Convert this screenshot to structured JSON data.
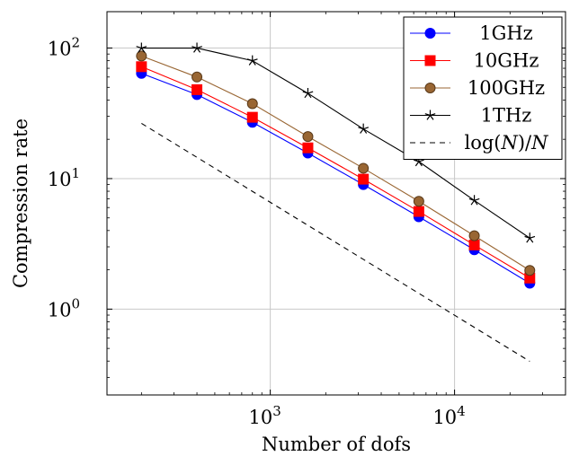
{
  "chart_data": {
    "type": "line",
    "xscale": "log",
    "yscale": "log",
    "xlabel": "Number of dofs",
    "ylabel": "Compression rate",
    "xlim": [
      130,
      40000
    ],
    "ylim": [
      0.22,
      190
    ],
    "grid": true,
    "legend_position": "top-right",
    "xticks": [
      {
        "value": 1000,
        "base": "10",
        "exp": "3"
      },
      {
        "value": 10000,
        "base": "10",
        "exp": "4"
      }
    ],
    "yticks": [
      {
        "value": 1,
        "base": "10",
        "exp": "0"
      },
      {
        "value": 10,
        "base": "10",
        "exp": "1"
      },
      {
        "value": 100,
        "base": "10",
        "exp": "2"
      }
    ],
    "series": [
      {
        "name": "1GHz",
        "color": "#0000ff",
        "marker": "circle",
        "dash": "",
        "x": [
          200,
          400,
          800,
          1600,
          3200,
          6400,
          12800,
          25600
        ],
        "y": [
          64,
          44,
          27,
          15.7,
          9.0,
          5.1,
          2.85,
          1.58
        ]
      },
      {
        "name": "10GHz",
        "color": "#ff0000",
        "marker": "square",
        "dash": "",
        "x": [
          200,
          400,
          800,
          1600,
          3200,
          6400,
          12800,
          25600
        ],
        "y": [
          72,
          48,
          29.5,
          17.2,
          9.9,
          5.6,
          3.1,
          1.73
        ]
      },
      {
        "name": "100GHz",
        "color": "#996633",
        "marker": "circle-brown",
        "dash": "",
        "x": [
          200,
          400,
          800,
          1600,
          3200,
          6400,
          12800,
          25600
        ],
        "y": [
          87,
          60,
          37.5,
          21,
          12,
          6.7,
          3.65,
          1.98
        ]
      },
      {
        "name": "1THz",
        "color": "#000000",
        "marker": "star",
        "dash": "",
        "x": [
          200,
          400,
          800,
          1600,
          3200,
          6400,
          12800,
          25600
        ],
        "y": [
          100,
          100,
          80,
          45,
          24,
          13.5,
          6.8,
          3.5
        ]
      },
      {
        "name_parts": {
          "a": "log(",
          "b": "N",
          "c": ")/",
          "d": "N"
        },
        "color": "#000000",
        "marker": "none",
        "dash": "6,5",
        "x": [
          200,
          25600
        ],
        "y": [
          26.5,
          0.398
        ]
      }
    ]
  }
}
